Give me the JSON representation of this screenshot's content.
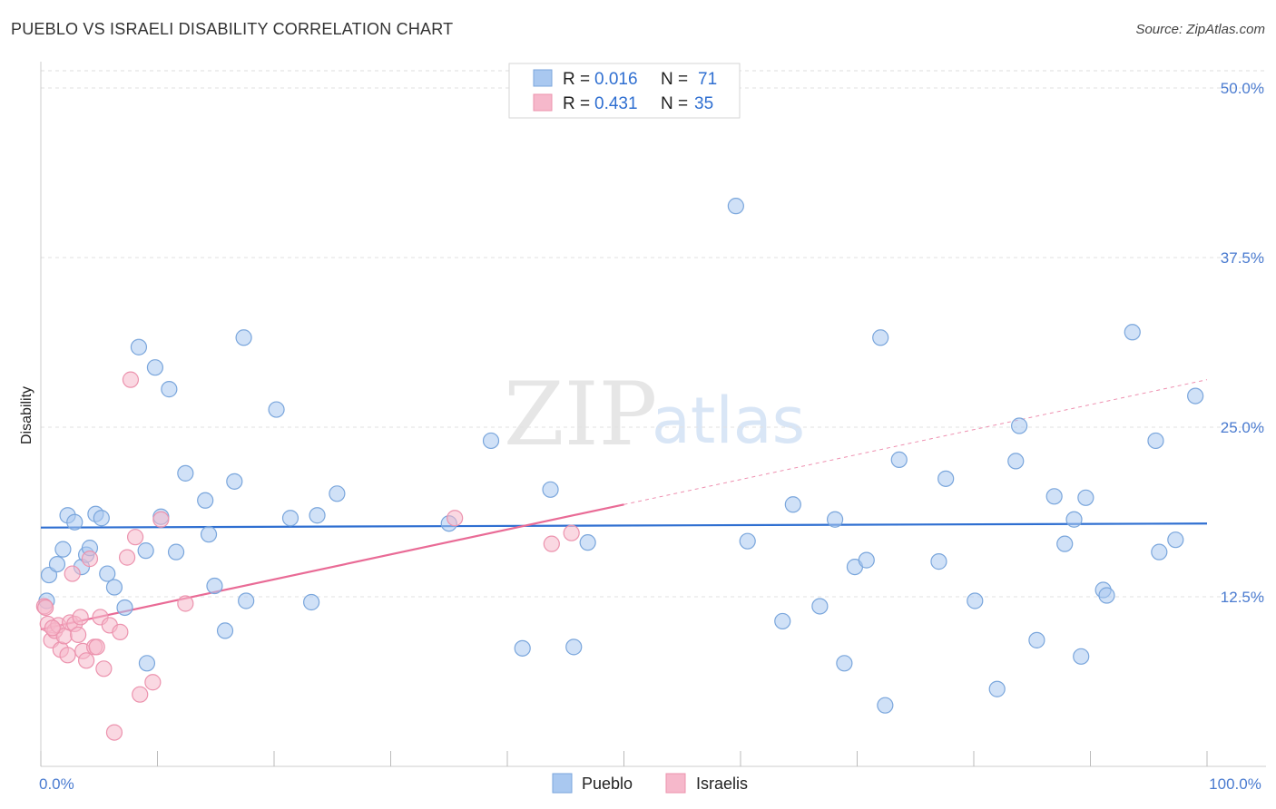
{
  "header": {
    "title": "PUEBLO VS ISRAELI DISABILITY CORRELATION CHART",
    "source": "Source: ZipAtlas.com"
  },
  "watermark": {
    "zip": "ZIP",
    "atlas": "atlas"
  },
  "legend": {
    "rows": [
      {
        "r_label": "R = ",
        "r_value": "0.016",
        "n_label": "N = ",
        "n_value": "71",
        "color": "#a9c8f0"
      },
      {
        "r_label": "R = ",
        "r_value": "0.431",
        "n_label": "N = ",
        "n_value": "35",
        "color": "#f6b8cb"
      }
    ]
  },
  "bottom_legend": [
    {
      "label": "Pueblo",
      "color": "#a9c8f0"
    },
    {
      "label": "Israelis",
      "color": "#f6b8cb"
    }
  ],
  "chart_data": {
    "type": "scatter",
    "title": "PUEBLO VS ISRAELI DISABILITY CORRELATION CHART",
    "xlabel": "",
    "ylabel": "Disability",
    "xlim": [
      0,
      100
    ],
    "ylim": [
      0,
      50
    ],
    "y_ticks": [
      {
        "value": 12.5,
        "label": "12.5%"
      },
      {
        "value": 25.0,
        "label": "25.0%"
      },
      {
        "value": 37.5,
        "label": "37.5%"
      },
      {
        "value": 50.0,
        "label": "50.0%"
      }
    ],
    "x_tick_labels": [
      {
        "value": 0,
        "label": "0.0%"
      },
      {
        "value": 100,
        "label": "100.0%"
      }
    ],
    "x_minor_ticks": [
      0,
      10,
      20,
      30,
      40,
      50,
      60,
      70,
      80,
      90,
      100
    ],
    "grid": true,
    "series": [
      {
        "name": "Pueblo",
        "color": "#a9c8f0",
        "stroke": "#7aa6dc",
        "trend": {
          "x0": 0,
          "y0": 17.6,
          "x1": 100,
          "y1": 17.9,
          "color": "#2f6fd1",
          "dashed_from": null
        },
        "points": [
          [
            0.7,
            14.1
          ],
          [
            1.4,
            14.9
          ],
          [
            1.9,
            16.0
          ],
          [
            2.3,
            18.5
          ],
          [
            2.9,
            18.0
          ],
          [
            3.5,
            14.7
          ],
          [
            3.9,
            15.6
          ],
          [
            4.2,
            16.1
          ],
          [
            4.7,
            18.6
          ],
          [
            5.2,
            18.3
          ],
          [
            5.7,
            14.2
          ],
          [
            6.3,
            13.2
          ],
          [
            7.2,
            11.7
          ],
          [
            8.4,
            30.9
          ],
          [
            9.0,
            15.9
          ],
          [
            9.1,
            7.6
          ],
          [
            9.8,
            29.4
          ],
          [
            10.3,
            18.4
          ],
          [
            11.0,
            27.8
          ],
          [
            11.6,
            15.8
          ],
          [
            12.4,
            21.6
          ],
          [
            14.1,
            19.6
          ],
          [
            14.4,
            17.1
          ],
          [
            14.9,
            13.3
          ],
          [
            15.8,
            10.0
          ],
          [
            16.6,
            21.0
          ],
          [
            17.4,
            31.6
          ],
          [
            17.6,
            12.2
          ],
          [
            20.2,
            26.3
          ],
          [
            21.4,
            18.3
          ],
          [
            23.2,
            12.1
          ],
          [
            23.7,
            18.5
          ],
          [
            25.4,
            20.1
          ],
          [
            35.0,
            17.9
          ],
          [
            38.6,
            24.0
          ],
          [
            41.3,
            8.7
          ],
          [
            43.7,
            20.4
          ],
          [
            45.7,
            8.8
          ],
          [
            46.9,
            16.5
          ],
          [
            59.6,
            41.3
          ],
          [
            60.6,
            16.6
          ],
          [
            63.6,
            10.7
          ],
          [
            64.5,
            19.3
          ],
          [
            66.8,
            11.8
          ],
          [
            68.1,
            18.2
          ],
          [
            68.9,
            7.6
          ],
          [
            69.8,
            14.7
          ],
          [
            70.8,
            15.2
          ],
          [
            72.0,
            31.6
          ],
          [
            72.4,
            4.5
          ],
          [
            73.6,
            22.6
          ],
          [
            77.0,
            15.1
          ],
          [
            77.6,
            21.2
          ],
          [
            80.1,
            12.2
          ],
          [
            82.0,
            5.7
          ],
          [
            83.6,
            22.5
          ],
          [
            83.9,
            25.1
          ],
          [
            85.4,
            9.3
          ],
          [
            86.9,
            19.9
          ],
          [
            87.8,
            16.4
          ],
          [
            88.6,
            18.2
          ],
          [
            89.2,
            8.1
          ],
          [
            89.6,
            19.8
          ],
          [
            91.1,
            13.0
          ],
          [
            91.4,
            12.6
          ],
          [
            93.6,
            32.0
          ],
          [
            95.6,
            24.0
          ],
          [
            95.9,
            15.8
          ],
          [
            97.3,
            16.7
          ],
          [
            99.0,
            27.3
          ],
          [
            0.5,
            12.2
          ]
        ]
      },
      {
        "name": "Israelis",
        "color": "#f6b8cb",
        "stroke": "#ec93ae",
        "trend": {
          "x0": 0,
          "y0": 10.1,
          "x1": 100,
          "y1": 28.5,
          "color": "#e96b96",
          "dashed_from": 50
        },
        "points": [
          [
            0.3,
            11.8
          ],
          [
            0.6,
            10.5
          ],
          [
            0.9,
            9.3
          ],
          [
            1.2,
            10.0
          ],
          [
            1.5,
            10.4
          ],
          [
            1.7,
            8.6
          ],
          [
            2.0,
            9.6
          ],
          [
            2.3,
            8.2
          ],
          [
            2.5,
            10.6
          ],
          [
            2.7,
            14.2
          ],
          [
            2.9,
            10.5
          ],
          [
            3.2,
            9.7
          ],
          [
            3.4,
            11.0
          ],
          [
            3.6,
            8.5
          ],
          [
            3.9,
            7.8
          ],
          [
            4.2,
            15.3
          ],
          [
            4.6,
            8.8
          ],
          [
            4.8,
            8.8
          ],
          [
            5.1,
            11.0
          ],
          [
            5.4,
            7.2
          ],
          [
            5.9,
            10.4
          ],
          [
            6.3,
            2.5
          ],
          [
            6.8,
            9.9
          ],
          [
            7.4,
            15.4
          ],
          [
            7.7,
            28.5
          ],
          [
            8.1,
            16.9
          ],
          [
            8.5,
            5.3
          ],
          [
            9.6,
            6.2
          ],
          [
            10.3,
            18.2
          ],
          [
            12.4,
            12.0
          ],
          [
            35.5,
            18.3
          ],
          [
            43.8,
            16.4
          ],
          [
            45.5,
            17.2
          ],
          [
            0.4,
            11.7
          ],
          [
            1.0,
            10.2
          ]
        ]
      }
    ]
  }
}
